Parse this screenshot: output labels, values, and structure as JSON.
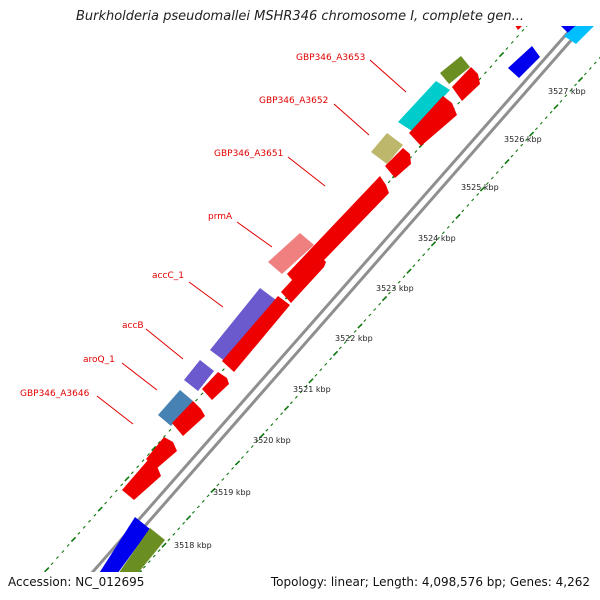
{
  "title": "Burkholderia pseudomallei MSHR346 chromosome I, complete gen...",
  "footer": {
    "accession": "Accession: NC_012695",
    "summary": "Topology: linear; Length: 4,098,576 bp; Genes: 4,262"
  },
  "ruler": {
    "ticks": [
      {
        "label": "3518 kbp"
      },
      {
        "label": "3519 kbp"
      },
      {
        "label": "3520 kbp"
      },
      {
        "label": "3521 kbp"
      },
      {
        "label": "3522 kbp"
      },
      {
        "label": "3523 kbp"
      },
      {
        "label": "3524 kbp"
      },
      {
        "label": "3525 kbp"
      },
      {
        "label": "3526 kbp"
      },
      {
        "label": "3527 kbp"
      }
    ]
  },
  "gene_labels": [
    {
      "text": "GBP346_A3653",
      "color": "#e00000"
    },
    {
      "text": "GBP346_A3652",
      "color": "#e00000"
    },
    {
      "text": "GBP346_A3651",
      "color": "#e00000"
    },
    {
      "text": "prmA",
      "color": "#e00000"
    },
    {
      "text": "accC_1",
      "color": "#e00000"
    },
    {
      "text": "accB",
      "color": "#e00000"
    },
    {
      "text": "aroQ_1",
      "color": "#e00000"
    },
    {
      "text": "GBP346_A3646",
      "color": "#e00000"
    }
  ],
  "colors": {
    "backbone": "#999999",
    "tick_mark": "#117711",
    "cds_red": "#ee0000",
    "feature_olive": "#6b8e23",
    "feature_cyan": "#00cccc",
    "feature_khaki": "#bdb76b",
    "feature_pink": "#f08080",
    "feature_slate_blue": "#6a5acd",
    "feature_steel_blue": "#4682b4",
    "feature_blue": "#0000ee",
    "feature_sky": "#00bfff"
  }
}
